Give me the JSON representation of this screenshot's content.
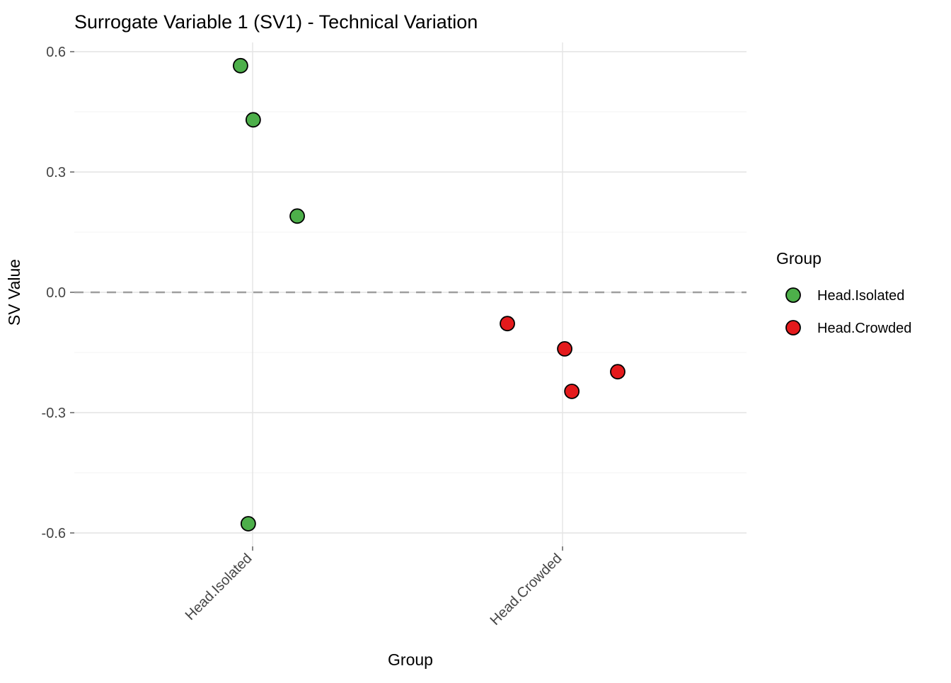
{
  "chart_data": {
    "type": "scatter",
    "title": "Surrogate Variable 1 (SV1) - Technical Variation",
    "xlabel": "Group",
    "ylabel": "SV Value",
    "legend_title": "Group",
    "legend_position": "right",
    "grid": true,
    "categories": [
      "Head.Isolated",
      "Head.Crowded"
    ],
    "yticks": [
      {
        "label": "0.6",
        "value": 0.6
      },
      {
        "label": "0.3",
        "value": 0.3
      },
      {
        "label": "0.0",
        "value": 0.0
      },
      {
        "label": "-0.3",
        "value": -0.3
      },
      {
        "label": "-0.6",
        "value": -0.6
      }
    ],
    "yticks_minor": [
      0.45,
      0.15,
      -0.15,
      -0.45
    ],
    "ylim": [
      -0.63,
      0.62
    ],
    "reference_line": {
      "y": 0.0,
      "style": "dashed",
      "color": "#9e9e9e"
    },
    "point_colors": {
      "Head.Isolated": "#4daf4a",
      "Head.Crowded": "#e41a1c"
    },
    "series": [
      {
        "name": "Head.Isolated",
        "color": "#4daf4a",
        "points": [
          {
            "sv": 0.565,
            "jitter": -0.039
          },
          {
            "sv": 0.43,
            "jitter": 0.002
          },
          {
            "sv": 0.19,
            "jitter": 0.144
          },
          {
            "sv": -0.577,
            "jitter": -0.014
          }
        ]
      },
      {
        "name": "Head.Crowded",
        "color": "#e41a1c",
        "points": [
          {
            "sv": -0.078,
            "jitter": -0.178
          },
          {
            "sv": -0.141,
            "jitter": 0.007
          },
          {
            "sv": -0.247,
            "jitter": 0.03
          },
          {
            "sv": -0.198,
            "jitter": 0.178
          }
        ]
      }
    ]
  }
}
